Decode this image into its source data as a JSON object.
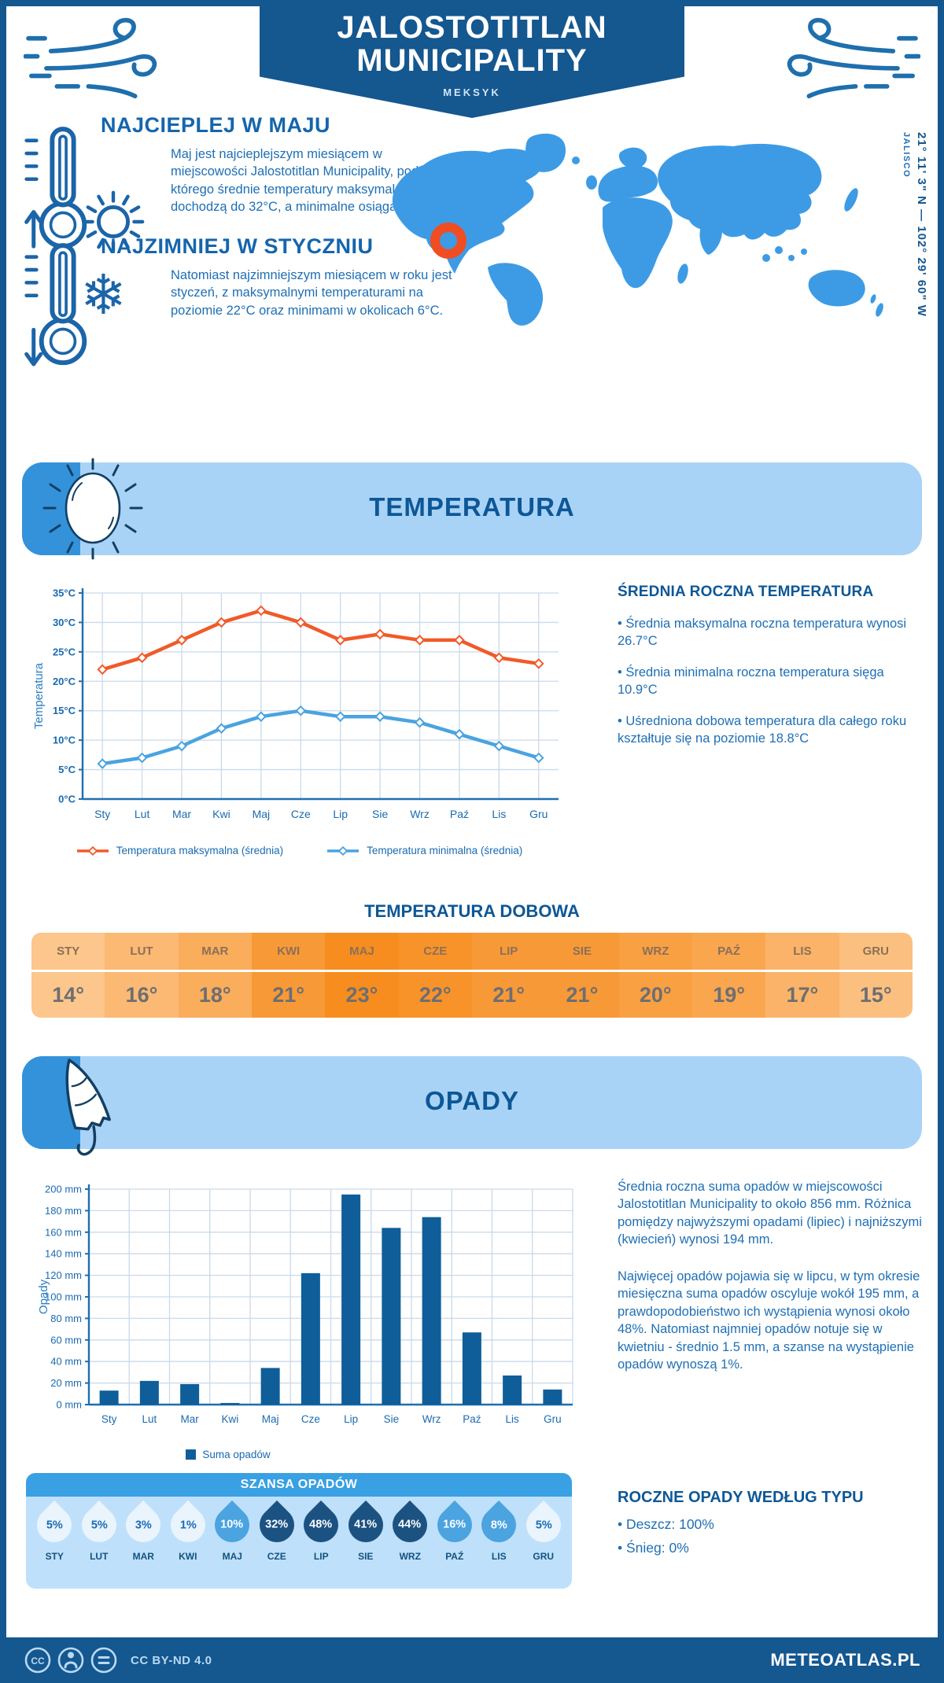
{
  "theme": {
    "navy": "#15578f",
    "grid": "#c9daea",
    "axis": "#1f6fae",
    "tick_text": "#1a6bb0",
    "ylabel_color": "#2a7ec2",
    "map_blue": "#3d9be5",
    "marker_orange": "#f04d23",
    "section_title": "#0d5796",
    "drop_light": "#eaf4fd",
    "drop_medium": "#4ba3e0",
    "drop_dark": "#1b5282"
  },
  "header": {
    "title_line1": "JALOSTOTITLAN",
    "title_line2": "MUNICIPALITY",
    "subtitle": "MEKSYK"
  },
  "location": {
    "coordinates": "21° 11' 3\" N — 102° 29' 60\" W",
    "region": "JALISCO"
  },
  "highlights": {
    "warmest": {
      "title": "NAJCIEPLEJ W MAJU",
      "text": "Maj jest najcieplejszym miesiącem w miejscowości Jalostotitlan Municipality, podczas którego średnie temperatury maksymalne dochodzą do 32°C, a minimalne osiągają 14°C."
    },
    "coldest": {
      "title": "NAJZIMNIEJ W STYCZNIU",
      "text": "Natomiast najzimniejszym miesiącem w roku jest styczeń, z maksymalnymi temperaturami na poziomie 22°C oraz minimami w okolicach 6°C."
    }
  },
  "temperature": {
    "section_title": "TEMPERATURA",
    "summary_title": "ŚREDNIA ROCZNA TEMPERATURA",
    "bullets": [
      "• Średnia maksymalna roczna temperatura wynosi 26.7°C",
      "• Średnia minimalna roczna temperatura sięga 10.9°C",
      "• Uśredniona dobowa temperatura dla całego roku kształtuje się na poziomie 18.8°C"
    ],
    "daily_title": "TEMPERATURA DOBOWA",
    "daily": {
      "months": [
        "STY",
        "LUT",
        "MAR",
        "KWI",
        "MAJ",
        "CZE",
        "LIP",
        "SIE",
        "WRZ",
        "PAŹ",
        "LIS",
        "GRU"
      ],
      "values": [
        "14°",
        "16°",
        "18°",
        "21°",
        "23°",
        "22°",
        "21°",
        "21°",
        "20°",
        "19°",
        "17°",
        "15°"
      ],
      "colors": [
        "#fcc68c",
        "#fbb974",
        "#faad5b",
        "#f89937",
        "#f78d1e",
        "#f8932a",
        "#f89937",
        "#f89937",
        "#f9a043",
        "#f9a64f",
        "#fab368",
        "#fbc080"
      ]
    }
  },
  "precipitation": {
    "section_title": "OPADY",
    "paragraphs": [
      "Średnia roczna suma opadów w miejscowości Jalostotitlan Municipality to około 856 mm. Różnica pomiędzy najwyższymi opadami (lipiec) i najniższymi (kwiecień) wynosi 194 mm.",
      "Najwięcej opadów pojawia się w lipcu, w tym okresie miesięczna suma opadów oscyluje wokół 195 mm, a prawdopodobieństwo ich wystąpienia wynosi około 48%. Natomiast najmniej opadów notuje się w kwietniu - średnio 1.5 mm, a szanse na wystąpienie opadów wynoszą 1%."
    ],
    "chance_title": "SZANSA OPADÓW",
    "chance": {
      "months": [
        "STY",
        "LUT",
        "MAR",
        "KWI",
        "MAJ",
        "CZE",
        "LIP",
        "SIE",
        "WRZ",
        "PAŹ",
        "LIS",
        "GRU"
      ],
      "values": [
        "5%",
        "5%",
        "3%",
        "1%",
        "10%",
        "32%",
        "48%",
        "41%",
        "44%",
        "16%",
        "8%",
        "5%"
      ],
      "levels": [
        "light",
        "light",
        "light",
        "light",
        "medium",
        "dark",
        "dark",
        "dark",
        "dark",
        "medium",
        "medium",
        "light"
      ]
    },
    "type_title": "ROCZNE OPADY WEDŁUG TYPU",
    "type_bullets": [
      "• Deszcz: 100%",
      "• Śnieg: 0%"
    ]
  },
  "chart_data": [
    {
      "type": "line",
      "title": "Temperatura",
      "categories": [
        "Sty",
        "Lut",
        "Mar",
        "Kwi",
        "Maj",
        "Cze",
        "Lip",
        "Sie",
        "Wrz",
        "Paź",
        "Lis",
        "Gru"
      ],
      "series": [
        {
          "name": "Temperatura maksymalna (średnia)",
          "color": "#f15a29",
          "values": [
            22,
            24,
            27,
            30,
            32,
            30,
            27,
            28,
            27,
            27,
            24,
            23
          ]
        },
        {
          "name": "Temperatura minimalna (średnia)",
          "color": "#4aa3e0",
          "values": [
            6,
            7,
            9,
            12,
            14,
            15,
            14,
            14,
            13,
            11,
            9,
            7
          ]
        }
      ],
      "ylabel": "Temperatura",
      "ylim": [
        0,
        35
      ],
      "ytick_step": 5,
      "ytick_suffix": "°C",
      "grid": true,
      "legend_position": "bottom"
    },
    {
      "type": "bar",
      "title": "Opady",
      "categories": [
        "Sty",
        "Lut",
        "Mar",
        "Kwi",
        "Maj",
        "Cze",
        "Lip",
        "Sie",
        "Wrz",
        "Paź",
        "Lis",
        "Gru"
      ],
      "series": [
        {
          "name": "Suma opadów",
          "color": "#0f5e99",
          "values": [
            13,
            22,
            19,
            1.5,
            34,
            122,
            195,
            164,
            174,
            67,
            27,
            14
          ]
        }
      ],
      "ylabel": "Opady",
      "ylim": [
        0,
        200
      ],
      "ytick_step": 20,
      "ytick_suffix": " mm",
      "grid": true,
      "legend_position": "bottom"
    }
  ],
  "footer": {
    "license": "CC BY-ND 4.0",
    "site": "METEOATLAS.PL"
  }
}
